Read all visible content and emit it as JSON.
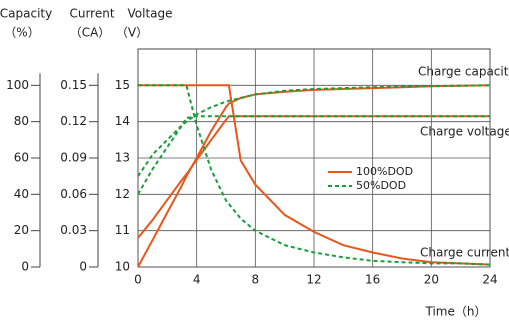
{
  "chart_data": {
    "type": "line",
    "xlabel": "Time（h）",
    "xlim": [
      0,
      24
    ],
    "xticks": [
      0,
      4,
      8,
      12,
      16,
      20,
      24
    ],
    "grid": true,
    "yaxes": {
      "capacity": {
        "label": "Capacity",
        "unit": "（%）",
        "lim": [
          0,
          120
        ],
        "ticks": [
          0,
          20,
          40,
          60,
          80,
          100
        ]
      },
      "current": {
        "label": "Current",
        "unit": "（CA）",
        "lim": [
          0,
          0.18
        ],
        "ticks": [
          0,
          0.03,
          0.06,
          0.09,
          0.12,
          0.15
        ]
      },
      "voltage": {
        "label": "Voltage",
        "unit": "（V）",
        "lim": [
          10,
          16
        ],
        "ticks": [
          10,
          11,
          12,
          13,
          14,
          15
        ]
      }
    },
    "x": [
      0,
      1,
      2,
      3,
      3.3,
      4,
      5,
      6,
      6.2,
      7,
      8,
      10,
      12,
      14,
      16,
      18,
      20,
      22,
      24
    ],
    "series": [
      {
        "name": "100%DOD",
        "color": "#e8561a",
        "dash": "none",
        "capacity": [
          0,
          15,
          30,
          45,
          50,
          60,
          75,
          88,
          90,
          93,
          95,
          96.5,
          97.5,
          98,
          98.5,
          99,
          99.5,
          99.8,
          100
        ],
        "voltage": [
          10.8,
          11.3,
          11.85,
          12.4,
          12.55,
          12.95,
          13.5,
          14.05,
          14.15,
          14.15,
          14.15,
          14.15,
          14.15,
          14.15,
          14.15,
          14.15,
          14.15,
          14.15,
          14.15
        ],
        "current": [
          0.15,
          0.15,
          0.15,
          0.15,
          0.15,
          0.15,
          0.15,
          0.15,
          0.15,
          0.088,
          0.068,
          0.043,
          0.029,
          0.018,
          0.012,
          0.007,
          0.004,
          0.003,
          0.002
        ]
      },
      {
        "name": "50%DOD",
        "color": "#1a9e3a",
        "dash": "4,3",
        "capacity": [
          50,
          62,
          70,
          78,
          80,
          84,
          88,
          91,
          91.5,
          93,
          95,
          97,
          98,
          98.5,
          99,
          99.3,
          99.6,
          99.8,
          100
        ],
        "voltage": [
          12,
          12.7,
          13.3,
          13.9,
          14.1,
          14.15,
          14.15,
          14.15,
          14.15,
          14.15,
          14.15,
          14.15,
          14.15,
          14.15,
          14.15,
          14.15,
          14.15,
          14.15,
          14.15
        ],
        "current": [
          0.15,
          0.15,
          0.15,
          0.15,
          0.15,
          0.117,
          0.08,
          0.055,
          0.052,
          0.04,
          0.03,
          0.018,
          0.012,
          0.008,
          0.005,
          0.004,
          0.003,
          0.003,
          0.002
        ]
      }
    ],
    "annotations": [
      "Charge capacity",
      "Charge voltage",
      "Charge current"
    ]
  }
}
